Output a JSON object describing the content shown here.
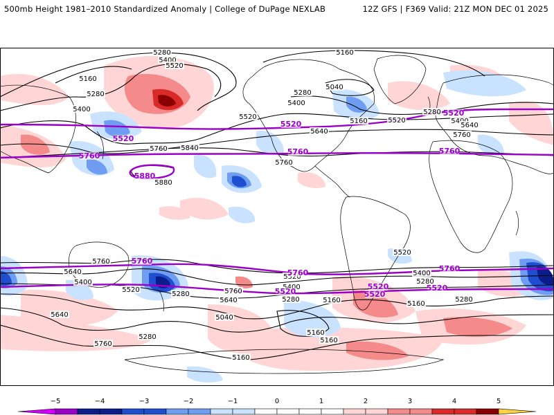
{
  "header": {
    "left_title": "500mb Height 1981–2010 Standardized Anomaly | College of DuPage NEXLAB",
    "right_title": "12Z GFS | F369 Valid: 21Z MON DEC 01 2025"
  },
  "colors": {
    "purple": "#9b00c8",
    "contour": "#000000",
    "anom_neg1": "#c9e2ff",
    "anom_neg2": "#6f9df2",
    "anom_neg3": "#1f4fcf",
    "anom_neg4": "#0a1d8a",
    "anom_pos1": "#ffd5d5",
    "anom_pos2": "#f48a8a",
    "anom_pos3": "#d92a2a",
    "anom_pos4": "#8a0000"
  },
  "contour_labels": {
    "black": [
      "5280",
      "5400",
      "5160",
      "5160",
      "5280",
      "5400",
      "5520",
      "5520",
      "5760",
      "5840",
      "5280",
      "5040",
      "5400",
      "5160",
      "5520",
      "5640",
      "5760",
      "5280",
      "5400",
      "5640",
      "5760",
      "5880",
      "5760",
      "5640",
      "5400",
      "5520",
      "5280",
      "5760",
      "5640",
      "5520",
      "5400",
      "5280",
      "5040",
      "5160",
      "5160",
      "5160",
      "5160",
      "5280",
      "5760",
      "5640",
      "5520",
      "5400",
      "5280",
      "5160",
      "5280"
    ],
    "purple": [
      "5520",
      "5520",
      "5520",
      "5760",
      "5760",
      "5760",
      "5880",
      "5520",
      "5520",
      "5760",
      "5760",
      "5760",
      "5520",
      "5520"
    ]
  },
  "legend": {
    "ticks": [
      "−5",
      "−4",
      "−3",
      "−2",
      "−1",
      "0",
      "1",
      "2",
      "3",
      "4",
      "5"
    ]
  }
}
